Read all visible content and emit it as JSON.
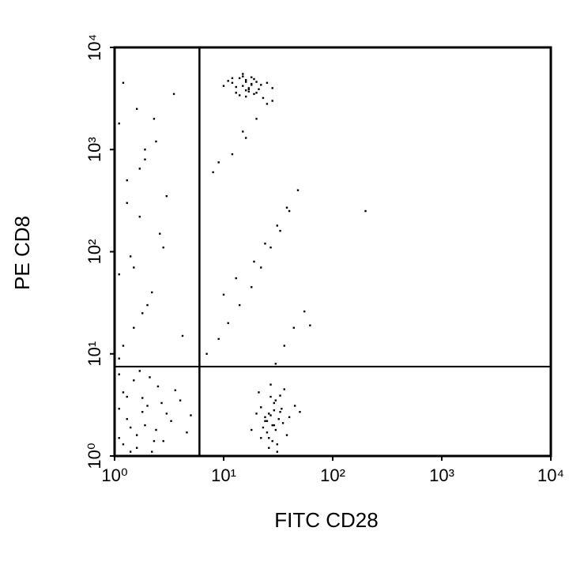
{
  "chart_data": {
    "type": "scatter",
    "x_label": "FITC CD28",
    "y_label": "PE CD8",
    "x_log": true,
    "y_log": true,
    "xlim": [
      1,
      10000
    ],
    "ylim": [
      1,
      10000
    ],
    "xticks": [
      {
        "value": 1,
        "label": "10⁰"
      },
      {
        "value": 10,
        "label": "10¹"
      },
      {
        "value": 100,
        "label": "10²"
      },
      {
        "value": 1000,
        "label": "10³"
      },
      {
        "value": 10000,
        "label": "10⁴"
      }
    ],
    "yticks": [
      {
        "value": 1,
        "label": "10⁰"
      },
      {
        "value": 10,
        "label": "10¹"
      },
      {
        "value": 100,
        "label": "10²"
      },
      {
        "value": 1000,
        "label": "10³"
      },
      {
        "value": 10000,
        "label": "10⁴"
      }
    ],
    "gates": {
      "x": 6,
      "y": 7.5
    },
    "color": "#000000",
    "x": [
      12,
      14,
      15,
      16,
      17,
      18,
      20,
      13,
      15,
      17,
      19,
      22,
      11,
      16,
      18,
      14,
      21,
      25,
      10,
      16,
      19,
      13,
      17,
      15,
      23,
      28,
      12,
      18,
      20,
      16,
      25,
      27,
      30,
      22,
      28,
      33,
      26,
      24,
      29,
      31,
      35,
      20,
      23,
      27,
      32,
      38,
      26,
      29,
      21,
      25,
      30,
      34,
      28,
      24,
      27,
      40,
      45,
      18,
      36,
      31,
      26,
      22,
      33,
      29,
      50,
      1.1,
      1.3,
      1.6,
      2,
      2.4,
      1.2,
      1.8,
      2.8,
      3.3,
      1.5,
      1.1,
      2.2,
      4,
      1.4,
      1.7,
      3,
      2.5,
      1.2,
      1.9,
      4.6,
      1.3,
      2.7,
      1.6,
      3.6,
      1.1,
      2.1,
      1.4,
      5,
      2.3,
      1.8,
      1.2,
      1.5,
      1.8,
      2.2,
      1.1,
      1.4,
      2.6,
      1.7,
      3,
      1.3,
      1.9,
      2.4,
      1.1,
      1.6,
      3.5,
      1.2,
      2,
      1.5,
      2.8,
      4.2,
      1.3,
      1.7,
      2.3,
      1.1,
      1.9,
      7,
      9,
      11,
      14,
      18,
      22,
      27,
      33,
      40,
      48,
      8,
      12,
      16,
      20,
      25,
      30,
      36,
      44,
      55,
      10,
      13,
      19,
      24,
      31,
      38,
      62,
      9,
      15,
      28,
      200
    ],
    "values": [
      4500,
      5000,
      4200,
      4800,
      3900,
      4400,
      4600,
      3600,
      5200,
      4000,
      3500,
      4300,
      4700,
      3800,
      5100,
      3400,
      3900,
      4500,
      4200,
      3300,
      4900,
      4100,
      3700,
      5500,
      3200,
      4000,
      5000,
      4300,
      3600,
      4600,
      2.2,
      2.5,
      1.8,
      3,
      2,
      2.7,
      1.5,
      2.4,
      3.3,
      1.3,
      2.1,
      2.6,
      1.9,
      3.8,
      2.3,
      1.6,
      1.2,
      2.8,
      4.2,
      1.7,
      3.5,
      2.9,
      1.4,
      2.2,
      5,
      2.4,
      3.1,
      1.8,
      4.5,
      1.1,
      2.6,
      1.5,
      3.9,
      2,
      2.7,
      1.5,
      2.3,
      1.2,
      3.1,
      1.8,
      4.2,
      2.7,
      1.4,
      2.2,
      5.5,
      6.3,
      1.1,
      3.5,
      1.9,
      6.8,
      2.6,
      4.8,
      1.3,
      2,
      1.7,
      3.8,
      3.3,
      1.6,
      4.4,
      2.9,
      5.9,
      1.1,
      2.5,
      1.4,
      3.7,
      12,
      18,
      25,
      40,
      60,
      90,
      150,
      220,
      350,
      500,
      800,
      1200,
      1800,
      2500,
      3500,
      4500,
      30,
      70,
      110,
      15,
      300,
      650,
      2000,
      9,
      1000,
      10,
      14,
      20,
      30,
      45,
      70,
      110,
      160,
      250,
      400,
      600,
      900,
      1300,
      2000,
      2800,
      8,
      12,
      18,
      26,
      38,
      55,
      80,
      120,
      180,
      270,
      19,
      750,
      1500,
      3000,
      250
    ]
  }
}
